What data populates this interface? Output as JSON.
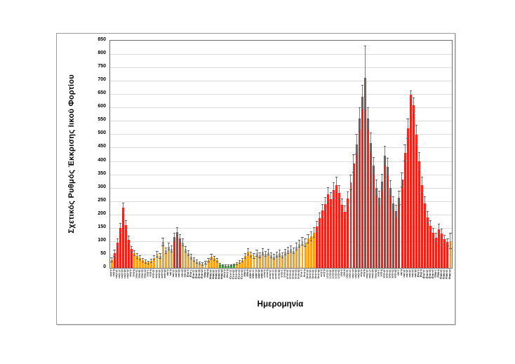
{
  "chart_data": {
    "type": "bar",
    "title": "",
    "ylabel": "Σχετικός Ρυθμός Έκκρισης Ιικού Φορτίου",
    "xlabel": "Ημερομηνία",
    "ylim": [
      0,
      850
    ],
    "y_ticks": [
      0,
      50,
      100,
      150,
      200,
      250,
      300,
      350,
      400,
      450,
      500,
      550,
      600,
      650,
      700,
      750,
      800,
      850
    ],
    "grid": "horizontal",
    "legend": "none",
    "error_bars": true,
    "color_map": {
      "r": "#e8251c",
      "o": "#f6a21d",
      "g": "#43a047",
      "error": "#6f6f6f"
    },
    "categories": [
      "4-Οκτ",
      "8-Οκτ",
      "13-Οκτ",
      "17-Οκτ",
      "22-Οκτ",
      "26-Οκτ",
      "31-Οκτ",
      "4-Νοε",
      "9-Νοε",
      "13-Νοε",
      "18-Νοε",
      "22-Νοε",
      "27-Νοε",
      "1-Δεκ",
      "6-Δεκ",
      "10-Δεκ",
      "15-Δεκ",
      "19-Δεκ",
      "24-Δεκ",
      "28-Δεκ",
      "2-Ιαν",
      "6-Ιαν",
      "11-Ιαν",
      "15-Ιαν",
      "20-Ιαν",
      "24-Ιαν",
      "29-Ιαν",
      "2-Φεβ",
      "7-Φεβ",
      "11-Φεβ",
      "16-Φεβ",
      "20-Φεβ",
      "25-Φεβ",
      "1-Μαρ",
      "6-Μαρ",
      "10-Μαρ",
      "15-Μαρ",
      "19-Μαρ",
      "24-Μαρ",
      "28-Μαρ",
      "2-Απρ",
      "6-Απρ",
      "11-Απρ",
      "15-Απρ",
      "20-Απρ",
      "24-Απρ",
      "29-Απρ",
      "3-Μαϊ",
      "8-Μαϊ",
      "12-Μαϊ",
      "17-Μαϊ",
      "21-Μαϊ",
      "26-Μαϊ",
      "30-Μαϊ",
      "4-Ιουν",
      "8-Ιουν",
      "13-Ιουν",
      "17-Ιουν",
      "22-Ιουν",
      "26-Ιουν",
      "1-Ιουλ",
      "5-Ιουλ",
      "10-Ιουλ",
      "14-Ιουλ",
      "19-Ιουλ",
      "23-Ιουλ",
      "28-Ιουλ",
      "1-Αυγ",
      "6-Αυγ",
      "10-Αυγ",
      "15-Αυγ",
      "19-Αυγ",
      "24-Αυγ",
      "28-Αυγ",
      "2-Σεπ",
      "6-Σεπ",
      "11-Σεπ",
      "15-Σεπ",
      "20-Σεπ",
      "24-Σεπ",
      "29-Σεπ",
      "3-Οκτ",
      "8-Οκτ",
      "12-Οκτ",
      "17-Οκτ",
      "21-Οκτ",
      "26-Οκτ",
      "30-Οκτ",
      "4-Νοε",
      "8-Νοε",
      "13-Νοε",
      "17-Νοε",
      "22-Νοε",
      "26-Νοε",
      "1-Δεκ",
      "5-Δεκ",
      "10-Δεκ",
      "14-Δεκ",
      "19-Δεκ",
      "23-Δεκ",
      "28-Δεκ",
      "1-Ιαν",
      "6-Ιαν",
      "10-Ιαν",
      "15-Ιαν",
      "19-Ιαν",
      "24-Ιαν",
      "28-Ιαν",
      "2-Φεβ",
      "6-Φεβ",
      "11-Φεβ",
      "15-Φεβ",
      "20-Φεβ",
      "24-Φεβ",
      "1-Μαρ",
      "5-Μαρ",
      "10-Μαρ",
      "14-Μαρ",
      "19-Μαρ",
      "23-Μαρ"
    ],
    "series": [
      {
        "name": "Σχετικός Ρυθμός Έκκρισης Ιικού Φορτίου",
        "values": [
          30,
          55,
          95,
          150,
          225,
          160,
          105,
          70,
          55,
          45,
          38,
          30,
          24,
          20,
          26,
          38,
          52,
          45,
          98,
          65,
          80,
          72,
          115,
          135,
          110,
          95,
          70,
          55,
          42,
          32,
          24,
          18,
          15,
          20,
          30,
          42,
          36,
          28,
          14,
          10,
          8,
          8,
          10,
          12,
          16,
          22,
          30,
          45,
          60,
          50,
          44,
          55,
          48,
          60,
          52,
          58,
          47,
          42,
          50,
          55,
          48,
          60,
          66,
          72,
          64,
          80,
          90,
          100,
          94,
          110,
          118,
          132,
          155,
          185,
          215,
          240,
          275,
          258,
          290,
          310,
          282,
          235,
          210,
          260,
          320,
          392,
          462,
          558,
          640,
          712,
          560,
          468,
          382,
          300,
          262,
          322,
          420,
          378,
          300,
          242,
          212,
          262,
          330,
          430,
          522,
          648,
          608,
          498,
          398,
          310,
          242,
          190,
          158,
          130,
          114,
          145,
          128,
          108,
          96,
          100
        ],
        "error_plus": [
          10,
          12,
          15,
          18,
          20,
          18,
          15,
          12,
          10,
          10,
          9,
          8,
          7,
          7,
          8,
          10,
          12,
          11,
          16,
          12,
          14,
          13,
          16,
          18,
          15,
          14,
          12,
          11,
          10,
          8,
          7,
          6,
          6,
          7,
          8,
          10,
          9,
          8,
          5,
          4,
          4,
          4,
          4,
          5,
          6,
          7,
          8,
          11,
          14,
          11,
          10,
          12,
          11,
          13,
          11,
          12,
          10,
          10,
          11,
          12,
          10,
          12,
          13,
          13,
          12,
          14,
          15,
          16,
          15,
          17,
          18,
          19,
          21,
          23,
          25,
          26,
          28,
          26,
          29,
          30,
          28,
          25,
          23,
          26,
          30,
          34,
          38,
          42,
          46,
          120,
          42,
          38,
          33,
          30,
          27,
          30,
          36,
          33,
          29,
          26,
          24,
          26,
          28,
          32,
          38,
          15,
          30,
          38,
          34,
          30,
          26,
          23,
          21,
          19,
          17,
          20,
          18,
          16,
          15,
          30
        ],
        "bar_colors": [
          "o",
          "r",
          "r",
          "r",
          "r",
          "r",
          "r",
          "r",
          "o",
          "o",
          "o",
          "o",
          "o",
          "o",
          "o",
          "o",
          "o",
          "o",
          "o",
          "o",
          "o",
          "o",
          "r",
          "r",
          "r",
          "o",
          "o",
          "o",
          "o",
          "o",
          "o",
          "o",
          "o",
          "o",
          "o",
          "o",
          "o",
          "o",
          "g",
          "g",
          "g",
          "g",
          "g",
          "g",
          "o",
          "o",
          "o",
          "o",
          "o",
          "o",
          "o",
          "o",
          "o",
          "o",
          "o",
          "o",
          "o",
          "o",
          "o",
          "o",
          "o",
          "o",
          "o",
          "o",
          "o",
          "o",
          "o",
          "o",
          "o",
          "o",
          "o",
          "o",
          "r",
          "r",
          "r",
          "r",
          "r",
          "r",
          "r",
          "r",
          "r",
          "r",
          "r",
          "r",
          "r",
          "r",
          "r",
          "r",
          "r",
          "r",
          "r",
          "r",
          "r",
          "r",
          "r",
          "r",
          "r",
          "r",
          "r",
          "r",
          "r",
          "r",
          "r",
          "r",
          "r",
          "r",
          "r",
          "r",
          "r",
          "r",
          "r",
          "r",
          "r",
          "r",
          "r",
          "r",
          "r",
          "r",
          "r",
          "o"
        ]
      }
    ]
  }
}
